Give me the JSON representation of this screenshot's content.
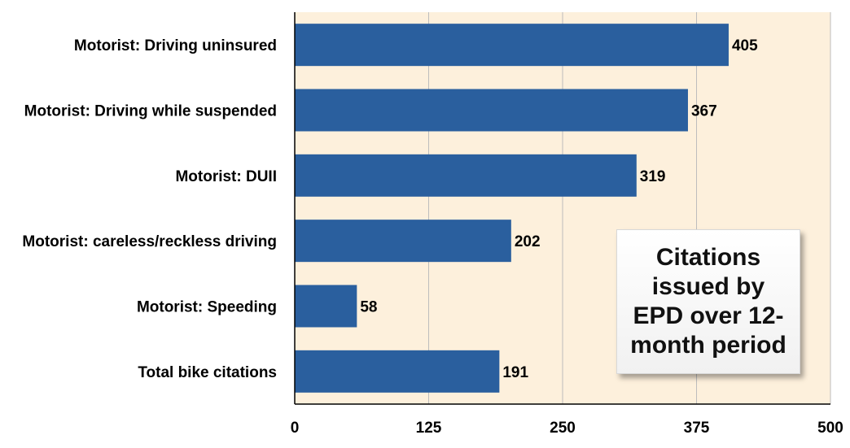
{
  "chart_data": {
    "type": "bar",
    "orientation": "horizontal",
    "categories": [
      "Motorist: Driving uninsured",
      "Motorist: Driving while suspended",
      "Motorist: DUII",
      "Motorist: careless/reckless driving",
      "Motorist: Speeding",
      "Total bike citations"
    ],
    "values": [
      405,
      367,
      319,
      202,
      58,
      191
    ],
    "xlim": [
      0,
      500
    ],
    "xticks": [
      "0",
      "125",
      "250",
      "375",
      "500"
    ],
    "grid": "vertical",
    "colors": {
      "bar": "#2a5f9e",
      "plot_background": "#fdf0dc",
      "gridline": "#bdbdbd"
    },
    "annotation": "Citations issued by EPD over 12-month period"
  }
}
